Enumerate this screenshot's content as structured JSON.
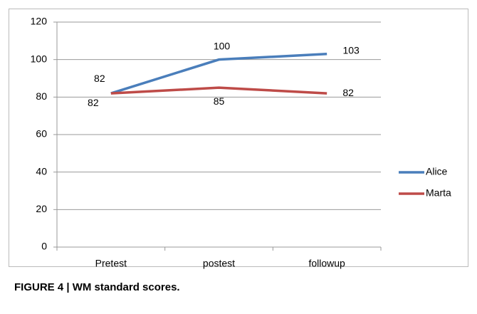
{
  "chart_data": {
    "type": "line",
    "categories": [
      "Pretest",
      "postest",
      "followup"
    ],
    "series": [
      {
        "name": "Alice",
        "color": "#4a7ebb",
        "values": [
          82,
          100,
          103
        ]
      },
      {
        "name": "Marta",
        "color": "#be4b48",
        "values": [
          82,
          85,
          82
        ]
      }
    ],
    "ylim": [
      0,
      120
    ],
    "yticks": [
      0,
      20,
      40,
      60,
      80,
      100,
      120
    ],
    "grid": true,
    "legend": "right"
  },
  "caption": "FIGURE 4 | WM standard scores."
}
